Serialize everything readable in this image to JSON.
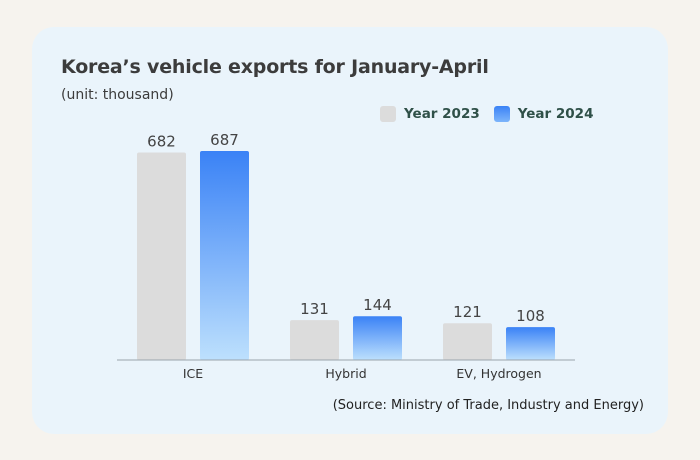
{
  "chart_data": {
    "type": "bar",
    "title": "Korea’s vehicle exports for January-April",
    "subtitle": "(unit: thousand)",
    "categories": [
      "ICE",
      "Hybrid",
      "EV, Hydrogen"
    ],
    "series": [
      {
        "name": "Year 2023",
        "values": [
          682,
          131,
          121
        ],
        "color": "#dcdcdc"
      },
      {
        "name": "Year 2024",
        "values": [
          687,
          144,
          108
        ],
        "color": "#3a82f6"
      }
    ],
    "xlabel": "",
    "ylabel": "",
    "ylim": [
      0,
      687
    ],
    "grid": false,
    "legend_position": "top-right",
    "source": "(Source: Ministry of Trade, Industry and Energy)"
  }
}
